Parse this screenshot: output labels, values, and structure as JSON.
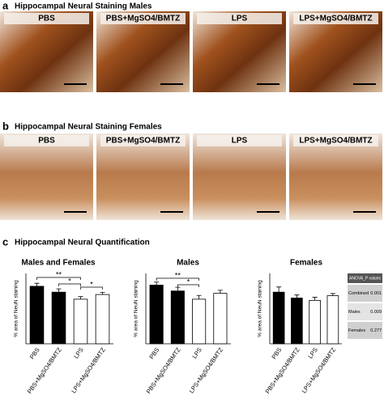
{
  "figure": {
    "panel_a": {
      "label": "a",
      "title": "Hippocampal Neural Staining Males",
      "images": [
        "PBS",
        "PBS+MgSO4/BMTZ",
        "LPS",
        "LPS+MgSO4/BMTZ"
      ]
    },
    "panel_b": {
      "label": "b",
      "title": "Hippocampal Neural Staining Females",
      "images": [
        "PBS",
        "PBS+MgSO4/BMTZ",
        "LPS",
        "LPS+MgSO4/BMTZ"
      ]
    },
    "panel_c": {
      "label": "c",
      "title": "Hippocampal Neural Quantification"
    },
    "anova_table": {
      "header": "ANOVA_P values",
      "rows": [
        [
          "Combined",
          "0.001"
        ],
        [
          "Males",
          "0.009"
        ],
        [
          "Females",
          "0.277"
        ]
      ]
    }
  },
  "chart_data": [
    {
      "type": "bar",
      "title": "Males and Females",
      "y_label": "% area of NeuN  staining",
      "categories": [
        "PBS",
        "PBS+MgSO4/BMTZ",
        "LPS",
        "LPS+MgSO4/BMTZ"
      ],
      "values": [
        24.5,
        22,
        19,
        21
      ],
      "errors": [
        1.3,
        1.4,
        1.1,
        0.9
      ],
      "colors": [
        "#000000",
        "#000000",
        "#ffffff",
        "#ffffff"
      ],
      "ylim": [
        0,
        30
      ],
      "annotations": [
        "**",
        "*",
        "*"
      ]
    },
    {
      "type": "bar",
      "title": "Males",
      "y_label": "% area of NeuN  staining",
      "categories": [
        "PBS",
        "PBS+MgSO4/BMTZ",
        "LPS",
        "LPS+MgSO4/BMTZ"
      ],
      "values": [
        25,
        22.5,
        19,
        21.5
      ],
      "errors": [
        1.3,
        1.6,
        1.6,
        1.3
      ],
      "colors": [
        "#000000",
        "#000000",
        "#ffffff",
        "#ffffff"
      ],
      "ylim": [
        0,
        30
      ],
      "annotations": [
        "**",
        "*"
      ]
    },
    {
      "type": "bar",
      "title": "Females",
      "y_label": "% area of NeuN  staining",
      "categories": [
        "PBS",
        "PBS+MgSO4/BMTZ",
        "LPS",
        "LPS+MgSO4/BMTZ"
      ],
      "values": [
        22,
        19.5,
        18.5,
        20.5
      ],
      "errors": [
        2.2,
        1.3,
        1.3,
        0.9
      ],
      "colors": [
        "#000000",
        "#000000",
        "#ffffff",
        "#ffffff"
      ],
      "ylim": [
        0,
        30
      ],
      "annotations": []
    }
  ]
}
